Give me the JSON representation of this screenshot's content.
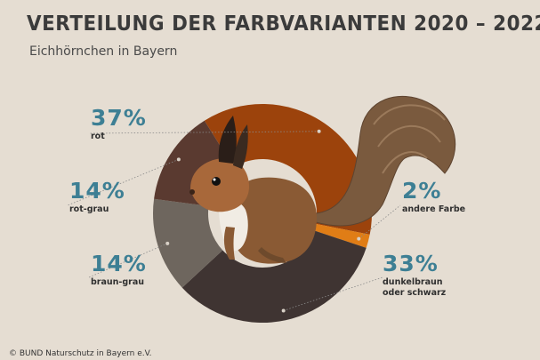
{
  "header": {
    "title": "VERTEILUNG DER FARBVARIANTEN 2020 – 2022",
    "subtitle": "Eichhörnchen in Bayern"
  },
  "footer": {
    "copyright": "© BUND Naturschutz in Bayern e.V."
  },
  "chart_data": {
    "type": "pie",
    "variant": "donut",
    "title": "VERTEILUNG DER FARBVARIANTEN 2020 – 2022",
    "subtitle": "Eichhörnchen in Bayern",
    "unit": "%",
    "slices": [
      {
        "label": "rot",
        "value": 37,
        "value_label": "37%",
        "color": "#9c430c"
      },
      {
        "label": "andere Farbe",
        "value": 2,
        "value_label": "2%",
        "color": "#e07d16"
      },
      {
        "label": "dunkelbraun oder schwarz",
        "value": 33,
        "value_label": "33%",
        "color": "#3f3432"
      },
      {
        "label": "braun-grau",
        "value": 14,
        "value_label": "14%",
        "color": "#6e665e"
      },
      {
        "label": "rot-grau",
        "value": 14,
        "value_label": "14%",
        "color": "#5a3a30"
      }
    ],
    "legend": "none",
    "illustration": "red squirrel photo overlaid on donut"
  }
}
